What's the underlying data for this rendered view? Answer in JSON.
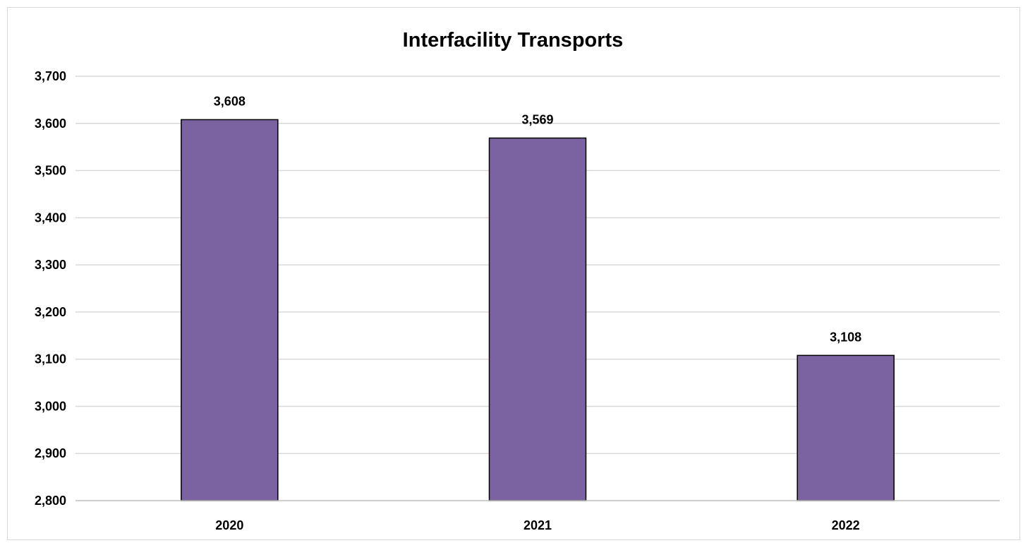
{
  "chart_data": {
    "type": "bar",
    "title": "Interfacility Transports",
    "xlabel": "",
    "ylabel": "",
    "categories": [
      "2020",
      "2021",
      "2022"
    ],
    "values": [
      3608,
      3569,
      3108
    ],
    "data_labels": [
      "3,608",
      "3,569",
      "3,108"
    ],
    "ylim": [
      2800,
      3700
    ],
    "y_ticks": [
      2800,
      2900,
      3000,
      3100,
      3200,
      3300,
      3400,
      3500,
      3600,
      3700
    ],
    "y_tick_labels": [
      "2,800",
      "2,900",
      "3,000",
      "3,100",
      "3,200",
      "3,300",
      "3,400",
      "3,500",
      "3,600",
      "3,700"
    ],
    "grid": true,
    "legend": "none",
    "bar_color": "#7b62a0",
    "bar_outline_color": "#000000",
    "gridline_color": "#d9d9d9"
  }
}
